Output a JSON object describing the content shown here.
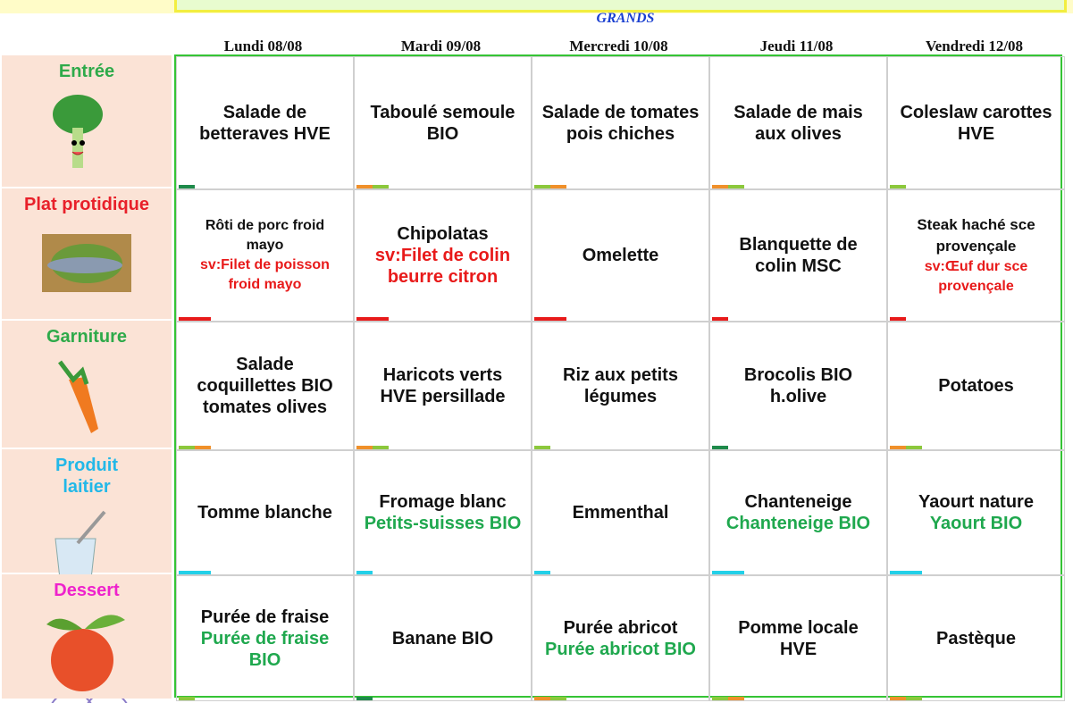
{
  "header": {
    "group": "GRANDS",
    "days": [
      "Lundi 08/08",
      "Mardi 09/08",
      "Mercredi 10/08",
      "Jeudi 11/08",
      "Vendredi 12/08"
    ]
  },
  "rows": [
    {
      "label": "Entrée",
      "cells": [
        {
          "text": "Salade de betteraves HVE"
        },
        {
          "text": "Taboulé semoule BIO"
        },
        {
          "text": "Salade de tomates pois chiches"
        },
        {
          "text": "Salade de mais aux olives"
        },
        {
          "text": "Coleslaw carottes HVE"
        }
      ]
    },
    {
      "label": "Plat protidique",
      "cells": [
        {
          "text": "Rôti de porc froid mayo",
          "alt": "sv:Filet de poisson froid mayo"
        },
        {
          "text": "Chipolatas",
          "alt": "sv:Filet de colin beurre citron"
        },
        {
          "text": "Omelette"
        },
        {
          "text": "Blanquette de colin MSC"
        },
        {
          "text": "Steak haché sce provençale",
          "alt": "sv:Œuf dur sce provençale"
        }
      ]
    },
    {
      "label": "Garniture",
      "cells": [
        {
          "text": "Salade coquillettes BIO tomates olives"
        },
        {
          "text": "Haricots verts HVE persillade"
        },
        {
          "text": "Riz aux petits légumes"
        },
        {
          "text": "Brocolis BIO h.olive"
        },
        {
          "text": "Potatoes"
        }
      ]
    },
    {
      "label": "Produit laitier",
      "cells": [
        {
          "text": "Tomme blanche"
        },
        {
          "text": "Fromage blanc",
          "alt": "Petits-suisses BIO"
        },
        {
          "text": "Emmenthal"
        },
        {
          "text": "Chanteneige",
          "alt": "Chanteneige BIO"
        },
        {
          "text": "Yaourt nature",
          "alt": "Yaourt BIO"
        }
      ]
    },
    {
      "label": "Dessert",
      "cells": [
        {
          "text": "Purée de fraise",
          "alt": "Purée de fraise BIO"
        },
        {
          "text": "Banane BIO"
        },
        {
          "text": "Purée abricot",
          "alt": "Purée abricot BIO"
        },
        {
          "text": "Pomme locale HVE"
        },
        {
          "text": "Pastèque"
        }
      ]
    }
  ]
}
